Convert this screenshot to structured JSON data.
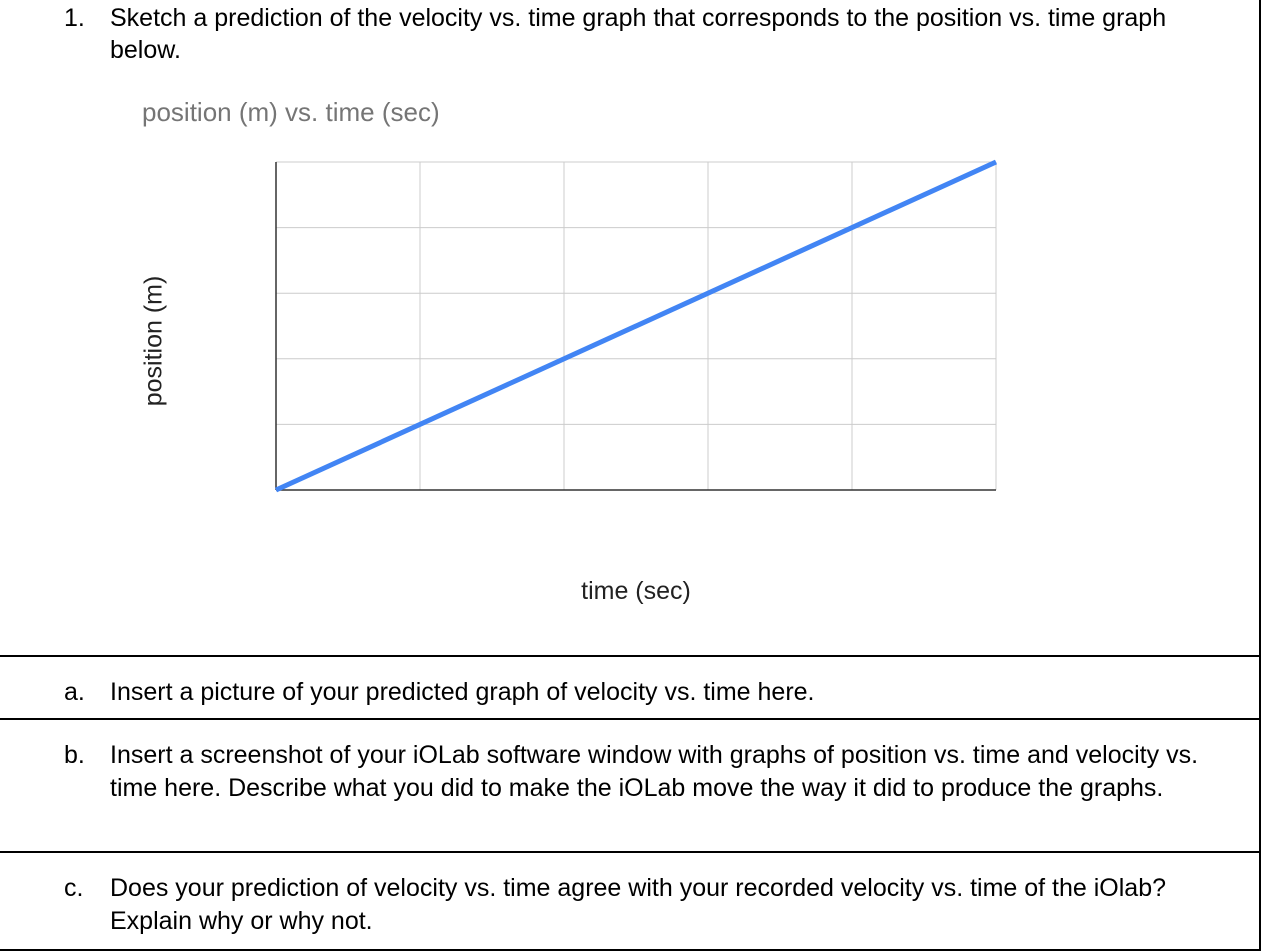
{
  "question": {
    "number": "1.",
    "text": "Sketch a prediction of the velocity vs. time graph that corresponds to the position vs. time graph below."
  },
  "chart_data": {
    "type": "line",
    "title": "position (m) vs. time (sec)",
    "xlabel": "time (sec)",
    "ylabel": "position (m)",
    "grid": true,
    "x_divisions": 5,
    "y_divisions": 5,
    "series": [
      {
        "values_x": [
          0,
          5
        ],
        "values_y": [
          0,
          5
        ]
      }
    ],
    "line_color": "#4285f4",
    "grid_color": "#cccccc"
  },
  "parts": [
    {
      "label": "a.",
      "text": "Insert a picture of your predicted graph of velocity vs. time here."
    },
    {
      "label": "b.",
      "text": "Insert a screenshot of your iOLab software window with graphs of position vs. time and velocity vs. time here. Describe what you did to make the iOLab move the way it did to produce the graphs."
    },
    {
      "label": "c.",
      "text": "Does your prediction of velocity vs. time agree with your recorded velocity vs. time of the iOlab? Explain why or why not."
    }
  ]
}
